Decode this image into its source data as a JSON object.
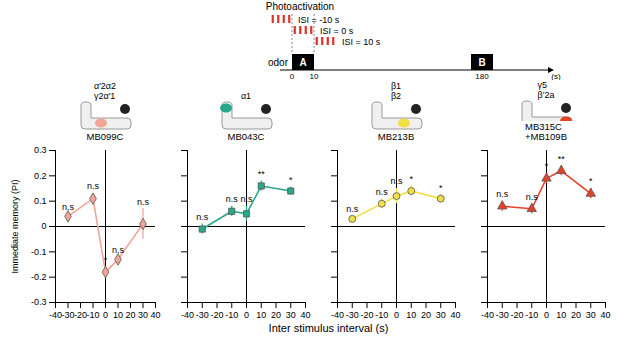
{
  "schematic": {
    "title": "Photoactivation",
    "isi": [
      {
        "label": "ISI = -10 s",
        "value": -10
      },
      {
        "label": "ISI = 0 s",
        "value": 0
      },
      {
        "label": "ISI = 10 s",
        "value": 10
      }
    ],
    "odor_label": "odor",
    "odor_A": {
      "label": "A",
      "start": 0,
      "end": 10
    },
    "odor_B": {
      "label": "B",
      "time": 180
    },
    "unit": "(s)"
  },
  "x_label": "Inter stimulus interval (s)",
  "chart_data": [
    {
      "type": "line",
      "title": [
        "MB099C"
      ],
      "region": [
        "α′2α2",
        "γ2α′1"
      ],
      "y_label": "Immediate memory (PI)",
      "x": [
        -30,
        -10,
        0,
        10,
        30
      ],
      "values": [
        0.04,
        0.11,
        -0.18,
        -0.13,
        0.01
      ],
      "errors": [
        0.01,
        0.02,
        0.02,
        0.01,
        0.06
      ],
      "annotations": [
        "n.s",
        "n.s",
        "*",
        "n.s",
        "n.s"
      ],
      "color": "#f2a597",
      "marker": "diamond",
      "xlim": [
        -40,
        40
      ],
      "xticks": [
        -40,
        -30,
        -20,
        -10,
        0,
        10,
        20,
        30,
        40
      ],
      "ylim": [
        -0.3,
        0.3
      ],
      "yticks": [
        -0.3,
        -0.2,
        -0.1,
        0,
        0.1,
        0.2,
        0.3
      ]
    },
    {
      "type": "line",
      "title": [
        "MB043C"
      ],
      "region": [
        "α1"
      ],
      "x": [
        -30,
        -10,
        0,
        10,
        30
      ],
      "values": [
        -0.01,
        0.06,
        0.05,
        0.16,
        0.14
      ],
      "errors": [
        0.02,
        0.02,
        0.03,
        0.02,
        0.015
      ],
      "annotations": [
        "n.s",
        "n.s",
        "n.s",
        "**",
        "*"
      ],
      "color": "#27a88a",
      "marker": "square",
      "xlim": [
        -40,
        40
      ],
      "xticks": [
        -40,
        -30,
        -20,
        -10,
        0,
        10,
        20,
        30,
        40
      ],
      "ylim": [
        -0.3,
        0.3
      ],
      "yticks": [
        -0.3,
        -0.2,
        -0.1,
        0,
        0.1,
        0.2,
        0.3
      ],
      "tick_labels": "x"
    },
    {
      "type": "line",
      "title": [
        "MB213B"
      ],
      "region": [
        "β1",
        "β2"
      ],
      "x": [
        -30,
        -10,
        0,
        10,
        30
      ],
      "values": [
        0.03,
        0.09,
        0.12,
        0.14,
        0.11
      ],
      "errors": [
        0.01,
        0.02,
        0.03,
        0.02,
        0.015
      ],
      "annotations": [
        "n.s",
        "n.s",
        "n.s",
        "*",
        "*"
      ],
      "color": "#f2de45",
      "marker": "circle",
      "xlim": [
        -40,
        40
      ],
      "xticks": [
        -40,
        -30,
        -20,
        -10,
        0,
        10,
        20,
        30,
        40
      ],
      "ylim": [
        -0.3,
        0.3
      ],
      "yticks": [
        -0.3,
        -0.2,
        -0.1,
        0,
        0.1,
        0.2,
        0.3
      ],
      "tick_labels": "x"
    },
    {
      "type": "line",
      "title": [
        "MB315C",
        "+MB109B"
      ],
      "region": [
        "γ5",
        "β′2a"
      ],
      "x": [
        -30,
        -10,
        0,
        10,
        30
      ],
      "values": [
        0.08,
        0.07,
        0.19,
        0.22,
        0.13
      ],
      "errors": [
        0.02,
        0.02,
        0.02,
        0.02,
        0.02
      ],
      "annotations": [
        "n.s",
        "n.s",
        "*",
        "**",
        "*"
      ],
      "color": "#e4432a",
      "marker": "triangle",
      "xlim": [
        -40,
        40
      ],
      "xticks": [
        -40,
        -30,
        -20,
        -10,
        0,
        10,
        20,
        30,
        40
      ],
      "ylim": [
        -0.3,
        0.3
      ],
      "yticks": [
        -0.3,
        -0.2,
        -0.1,
        0,
        0.1,
        0.2,
        0.3
      ],
      "tick_labels": "x"
    }
  ]
}
